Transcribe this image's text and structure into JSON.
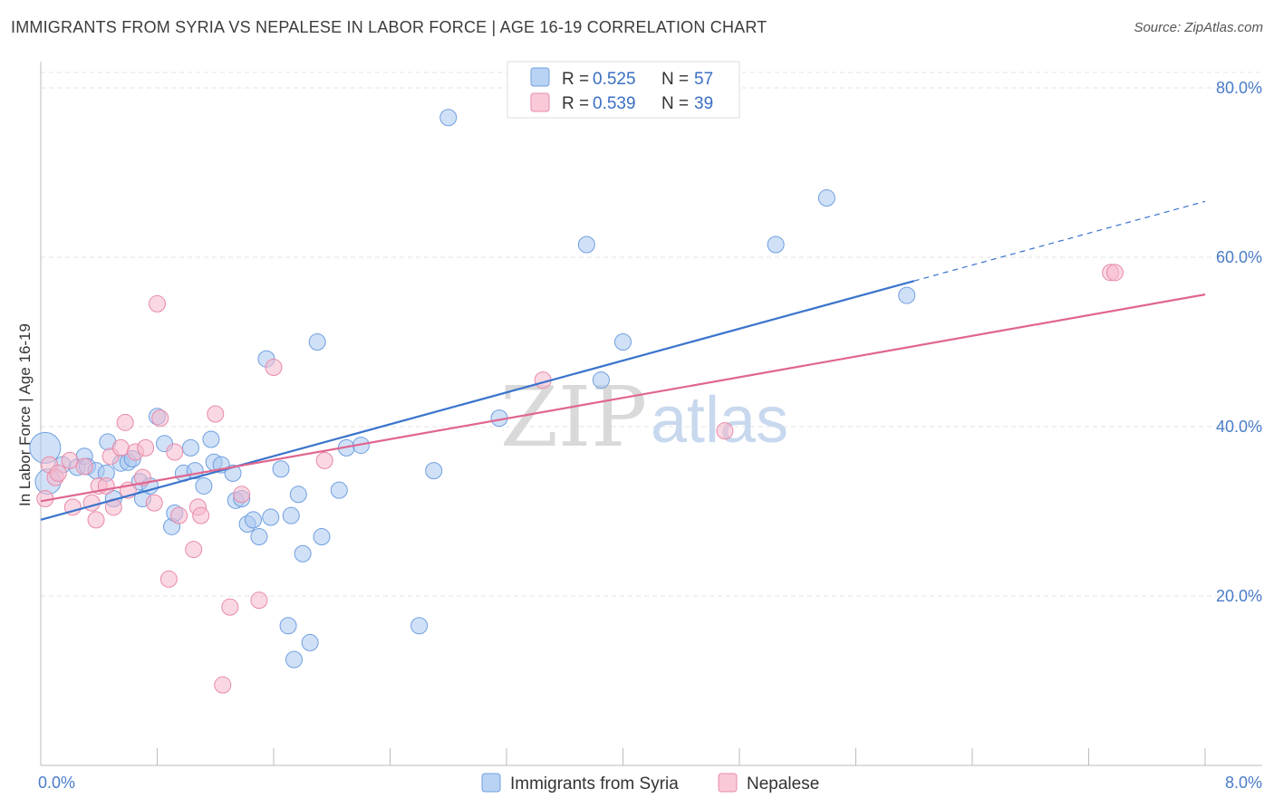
{
  "header": {
    "title": "IMMIGRANTS FROM SYRIA VS NEPALESE IN LABOR FORCE | AGE 16-19 CORRELATION CHART",
    "source": "Source: ZipAtlas.com"
  },
  "legend_box": {
    "rows": [
      {
        "r_label": "R = ",
        "r_value": "0.525",
        "n_label": "N = ",
        "n_value": "57",
        "color": "#a9c8f0"
      },
      {
        "r_label": "R = ",
        "r_value": "0.539",
        "n_label": "N = ",
        "n_value": "39",
        "color": "#f6b8cc"
      }
    ]
  },
  "watermark": {
    "zip": "ZIP",
    "atlas": "atlas"
  },
  "chart_data": {
    "type": "scatter",
    "ylabel": "In Labor Force | Age 16-19",
    "xlim": [
      0,
      8
    ],
    "ylim": [
      0,
      80
    ],
    "x_ticks": [
      {
        "value": 0,
        "label": "0.0%"
      },
      {
        "value": 8,
        "label": "8.0%"
      }
    ],
    "y_ticks": [
      {
        "value": 20,
        "label": "20.0%"
      },
      {
        "value": 40,
        "label": "40.0%"
      },
      {
        "value": 60,
        "label": "60.0%"
      },
      {
        "value": 80,
        "label": "80.0%"
      }
    ],
    "grid": true,
    "legend_position": "bottom-center",
    "series": [
      {
        "name": "Immigrants from Syria",
        "color": "#a9c8f0",
        "stroke": "#6f9fe0",
        "line_color": "#3a74cc",
        "trend": {
          "x0": 0.0,
          "y0": 29.0,
          "x1": 6.0,
          "y1": 57.2,
          "x_dash_end": 8.0,
          "y_dash_end": 66.6
        },
        "points": [
          [
            0.03,
            37.5
          ],
          [
            0.05,
            33.5
          ],
          [
            0.15,
            35.5
          ],
          [
            0.25,
            35.2
          ],
          [
            0.3,
            36.5
          ],
          [
            0.32,
            35.3
          ],
          [
            0.38,
            34.8
          ],
          [
            0.45,
            34.5
          ],
          [
            0.46,
            38.2
          ],
          [
            0.5,
            31.5
          ],
          [
            0.55,
            35.7
          ],
          [
            0.6,
            35.8
          ],
          [
            0.63,
            36.2
          ],
          [
            0.68,
            33.5
          ],
          [
            0.7,
            31.5
          ],
          [
            0.75,
            33.0
          ],
          [
            0.8,
            41.2
          ],
          [
            0.85,
            38.0
          ],
          [
            0.9,
            28.2
          ],
          [
            0.92,
            29.8
          ],
          [
            0.98,
            34.5
          ],
          [
            1.03,
            37.5
          ],
          [
            1.06,
            34.8
          ],
          [
            1.12,
            33.0
          ],
          [
            1.17,
            38.5
          ],
          [
            1.19,
            35.8
          ],
          [
            1.24,
            35.5
          ],
          [
            1.32,
            34.5
          ],
          [
            1.34,
            31.3
          ],
          [
            1.38,
            31.5
          ],
          [
            1.42,
            28.5
          ],
          [
            1.46,
            29.0
          ],
          [
            1.5,
            27.0
          ],
          [
            1.55,
            48.0
          ],
          [
            1.58,
            29.3
          ],
          [
            1.65,
            35.0
          ],
          [
            1.7,
            16.5
          ],
          [
            1.72,
            29.5
          ],
          [
            1.74,
            12.5
          ],
          [
            1.77,
            32.0
          ],
          [
            1.8,
            25.0
          ],
          [
            1.85,
            14.5
          ],
          [
            1.9,
            50.0
          ],
          [
            1.93,
            27.0
          ],
          [
            2.05,
            32.5
          ],
          [
            2.1,
            37.5
          ],
          [
            2.2,
            37.8
          ],
          [
            2.6,
            16.5
          ],
          [
            2.7,
            34.8
          ],
          [
            2.8,
            76.5
          ],
          [
            3.15,
            41.0
          ],
          [
            3.75,
            61.5
          ],
          [
            3.85,
            45.5
          ],
          [
            4.0,
            50.0
          ],
          [
            5.05,
            61.5
          ],
          [
            5.4,
            67.0
          ],
          [
            5.95,
            55.5
          ]
        ]
      },
      {
        "name": "Nepalese",
        "color": "#f6b8cc",
        "stroke": "#e88aa8",
        "line_color": "#e0668f",
        "trend": {
          "x0": 0.0,
          "y0": 31.2,
          "x1": 8.0,
          "y1": 55.6
        },
        "points": [
          [
            0.03,
            31.5
          ],
          [
            0.06,
            35.5
          ],
          [
            0.1,
            34.0
          ],
          [
            0.12,
            34.5
          ],
          [
            0.2,
            36.0
          ],
          [
            0.22,
            30.5
          ],
          [
            0.3,
            35.3
          ],
          [
            0.35,
            31.0
          ],
          [
            0.38,
            29.0
          ],
          [
            0.4,
            33.0
          ],
          [
            0.45,
            33.0
          ],
          [
            0.48,
            36.5
          ],
          [
            0.5,
            30.5
          ],
          [
            0.55,
            37.5
          ],
          [
            0.58,
            40.5
          ],
          [
            0.6,
            32.5
          ],
          [
            0.65,
            37.0
          ],
          [
            0.7,
            34.0
          ],
          [
            0.72,
            37.5
          ],
          [
            0.78,
            31.0
          ],
          [
            0.8,
            54.5
          ],
          [
            0.82,
            41.0
          ],
          [
            0.88,
            22.0
          ],
          [
            0.92,
            37.0
          ],
          [
            0.95,
            29.5
          ],
          [
            1.05,
            25.5
          ],
          [
            1.08,
            30.5
          ],
          [
            1.1,
            29.5
          ],
          [
            1.2,
            41.5
          ],
          [
            1.25,
            9.5
          ],
          [
            1.3,
            18.7
          ],
          [
            1.38,
            32.0
          ],
          [
            1.5,
            19.5
          ],
          [
            1.6,
            47.0
          ],
          [
            1.95,
            36.0
          ],
          [
            3.45,
            45.5
          ],
          [
            4.7,
            39.5
          ],
          [
            7.35,
            58.2
          ],
          [
            7.38,
            58.2
          ]
        ]
      }
    ]
  }
}
